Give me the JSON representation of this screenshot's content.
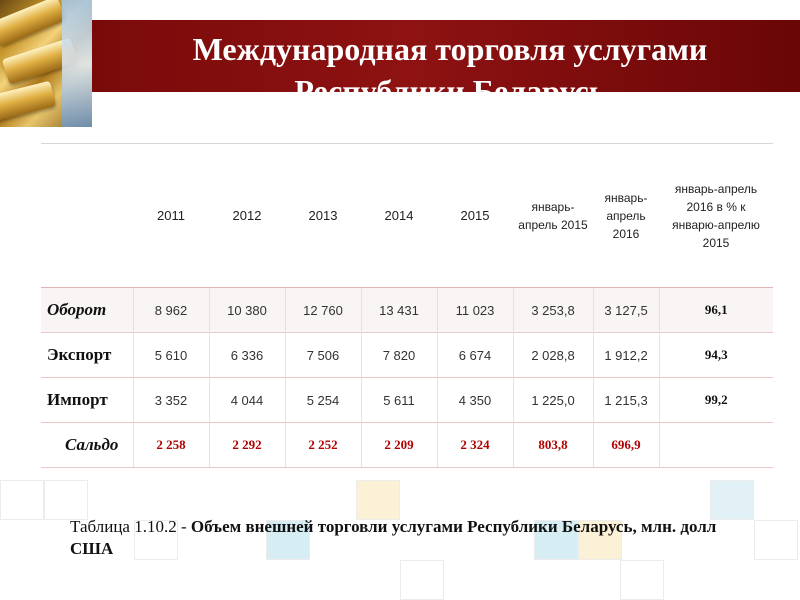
{
  "title": "Международная торговля услугами Республики Беларусь",
  "table": {
    "headers": [
      "",
      "2011",
      "2012",
      "2013",
      "2014",
      "2015",
      "январь-апрель 2015",
      "январь-апрель 2016",
      "январь-апрель 2016 в % к январю-апрелю 2015"
    ],
    "rows": [
      {
        "label": "Оборот",
        "values": [
          "8 962",
          "10 380",
          "12 760",
          "13 431",
          "11 023",
          "3 253,8",
          "3 127,5",
          "96,1"
        ]
      },
      {
        "label": "Экспорт",
        "values": [
          "5 610",
          "6 336",
          "7 506",
          "7 820",
          "6 674",
          "2 028,8",
          "1 912,2",
          "94,3"
        ]
      },
      {
        "label": "Импорт",
        "values": [
          "3 352",
          "4 044",
          "5 254",
          "5 611",
          "4 350",
          "1 225,0",
          "1 215,3",
          "99,2"
        ]
      },
      {
        "label": "Сальдо",
        "values": [
          "2 258",
          "2 292",
          "2 252",
          "2 209",
          "2 324",
          "803,8",
          "696,9",
          ""
        ]
      }
    ]
  },
  "caption": {
    "prefix": "Таблица 1.10.2 - ",
    "text": "Объем внешней торговли услугами Республики Беларусь, млн. долл США"
  },
  "colors": {
    "banner": "#7a0a0a",
    "saldo_values": "#b00000"
  },
  "decor": {
    "photo": "gold-bars-image"
  }
}
